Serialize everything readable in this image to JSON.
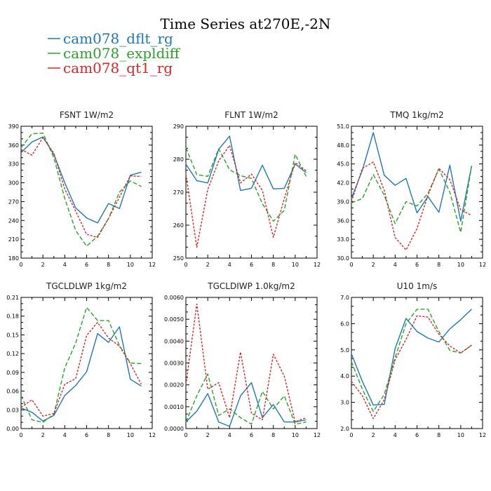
{
  "title": "Time Series at270E,-2N",
  "legend": [
    {
      "label": "cam078_dflt_rg",
      "color": "#1f77b4",
      "dash": "none"
    },
    {
      "label": "cam078_expldiff",
      "color": "#2ca02c",
      "dash": "6,3"
    },
    {
      "label": "cam078_qt1_rg",
      "color": "#d62728",
      "dash": "3,2"
    }
  ],
  "chart_data": [
    {
      "type": "line",
      "title": "FSNT   1W/m2",
      "xlim": [
        0,
        12
      ],
      "ylim": [
        180,
        390
      ],
      "xticks": [
        0,
        2,
        4,
        6,
        8,
        10,
        12
      ],
      "yticks": [
        180,
        210,
        240,
        270,
        300,
        330,
        360,
        390
      ],
      "yticklabels": [
        "180",
        "210",
        "240",
        "270",
        "300",
        "330",
        "360",
        "390"
      ],
      "x": [
        0,
        1,
        2,
        3,
        4,
        5,
        6,
        7,
        8,
        9,
        10,
        11
      ],
      "series": [
        {
          "name": "cam078_dflt_rg",
          "values": [
            348,
            365,
            373,
            345,
            300,
            260,
            244,
            236,
            267,
            259,
            312,
            317
          ]
        },
        {
          "name": "cam078_expldiff",
          "values": [
            356,
            378,
            379,
            340,
            275,
            224,
            199,
            215,
            243,
            285,
            303,
            294
          ]
        },
        {
          "name": "cam078_qt1_rg",
          "values": [
            353,
            344,
            372,
            347,
            290,
            255,
            218,
            213,
            243,
            277,
            311,
            310
          ]
        }
      ]
    },
    {
      "type": "line",
      "title": "FLNT   1W/m2",
      "xlim": [
        0,
        12
      ],
      "ylim": [
        250,
        290
      ],
      "xticks": [
        0,
        2,
        4,
        6,
        8,
        10,
        12
      ],
      "yticks": [
        250,
        260,
        270,
        280,
        290
      ],
      "yticklabels": [
        "250",
        "260",
        "270",
        "280",
        "290"
      ],
      "x": [
        0,
        1,
        2,
        3,
        4,
        5,
        6,
        7,
        8,
        9,
        10,
        11
      ],
      "series": [
        {
          "name": "cam078_dflt_rg",
          "values": [
            278.5,
            273.5,
            272.8,
            283,
            287,
            270.5,
            271.2,
            278.2,
            271,
            271.2,
            278.5,
            276
          ]
        },
        {
          "name": "cam078_expldiff",
          "values": [
            283.5,
            275.3,
            274.8,
            283.2,
            276.8,
            275,
            274.2,
            266.5,
            261.2,
            264.5,
            281.5,
            274.8
          ]
        },
        {
          "name": "cam078_qt1_rg",
          "values": [
            275.5,
            253.3,
            270.8,
            279.5,
            284.2,
            272.8,
            275.5,
            270.5,
            256.3,
            268,
            279,
            276.5
          ]
        }
      ]
    },
    {
      "type": "line",
      "title": "TMQ   1kg/m2",
      "xlim": [
        0,
        12
      ],
      "ylim": [
        30,
        51
      ],
      "xticks": [
        0,
        2,
        4,
        6,
        8,
        10,
        12
      ],
      "yticks": [
        30,
        33,
        36,
        39,
        42,
        45,
        48,
        51
      ],
      "yticklabels": [
        "30.0",
        "33.0",
        "36.0",
        "39.0",
        "42.0",
        "45.0",
        "48.0",
        "51.0"
      ],
      "x": [
        0,
        1,
        2,
        3,
        4,
        5,
        6,
        7,
        8,
        9,
        10,
        11
      ],
      "series": [
        {
          "name": "cam078_dflt_rg",
          "values": [
            39.5,
            44,
            50,
            43.2,
            41.6,
            42.7,
            37.2,
            39.8,
            37.3,
            44.8,
            35.9,
            44.7
          ]
        },
        {
          "name": "cam078_expldiff",
          "values": [
            38.8,
            39.5,
            43.3,
            40,
            35.5,
            39,
            38.3,
            40.3,
            44.2,
            40.5,
            34.1,
            44.7
          ]
        },
        {
          "name": "cam078_qt1_rg",
          "values": [
            39,
            44.3,
            45.3,
            40.8,
            33.3,
            31.3,
            34.7,
            40,
            44.3,
            42.5,
            37.7,
            36.8
          ]
        }
      ]
    },
    {
      "type": "line",
      "title": "TGCLDLWP   1kg/m2",
      "xlim": [
        0,
        12
      ],
      "ylim": [
        0,
        0.21
      ],
      "xticks": [
        0,
        2,
        4,
        6,
        8,
        10,
        12
      ],
      "yticks": [
        0,
        0.03,
        0.06,
        0.09,
        0.12,
        0.15,
        0.18,
        0.21
      ],
      "yticklabels": [
        "0.00",
        "0.03",
        "0.06",
        "0.09",
        "0.12",
        "0.15",
        "0.18",
        "0.21"
      ],
      "x": [
        0,
        1,
        2,
        3,
        4,
        5,
        6,
        7,
        8,
        9,
        10,
        11
      ],
      "series": [
        {
          "name": "cam078_dflt_rg",
          "values": [
            0.033,
            0.026,
            0.012,
            0.021,
            0.053,
            0.069,
            0.091,
            0.152,
            0.138,
            0.163,
            0.079,
            0.068
          ]
        },
        {
          "name": "cam078_expldiff",
          "values": [
            0.053,
            0.014,
            0.01,
            0.023,
            0.097,
            0.137,
            0.194,
            0.173,
            0.173,
            0.133,
            0.105,
            0.104
          ]
        },
        {
          "name": "cam078_qt1_rg",
          "values": [
            0.034,
            0.046,
            0.02,
            0.024,
            0.071,
            0.08,
            0.149,
            0.17,
            0.145,
            0.132,
            0.104,
            0.071
          ]
        }
      ]
    },
    {
      "type": "line",
      "title": "TGCLDIWP   1.0kg/m2",
      "xlim": [
        0,
        12
      ],
      "ylim": [
        0,
        0.006
      ],
      "xticks": [
        0,
        2,
        4,
        6,
        8,
        10,
        12
      ],
      "yticks": [
        0,
        0.001,
        0.002,
        0.003,
        0.004,
        0.005,
        0.006
      ],
      "yticklabels": [
        "0.0000",
        "0.0010",
        "0.0020",
        "0.0030",
        "0.0040",
        "0.0050",
        "0.0060"
      ],
      "x": [
        0,
        1,
        2,
        3,
        4,
        5,
        6,
        7,
        8,
        9,
        10,
        11
      ],
      "series": [
        {
          "name": "cam078_dflt_rg",
          "values": [
            0.0003,
            0.0008,
            0.0016,
            0.0003,
            0.0001,
            0.0015,
            0.0021,
            0.0005,
            0.0011,
            0.0003,
            0.0003,
            0.0004
          ]
        },
        {
          "name": "cam078_expldiff",
          "values": [
            0.0003,
            0.0015,
            0.0025,
            0.0006,
            0.0009,
            0.0005,
            0.0002,
            0.0017,
            0.0009,
            0.0015,
            0.0002,
            0.0003
          ]
        },
        {
          "name": "cam078_qt1_rg",
          "values": [
            0.002,
            0.0057,
            0.0018,
            0.0021,
            0.0005,
            0.0035,
            0.0007,
            0.0004,
            0.0034,
            0.0024,
            0.0003,
            0.0005
          ]
        }
      ]
    },
    {
      "type": "line",
      "title": "U10   1m/s",
      "xlim": [
        0,
        12
      ],
      "ylim": [
        2,
        7
      ],
      "xticks": [
        0,
        2,
        4,
        6,
        8,
        10,
        12
      ],
      "yticks": [
        2,
        3,
        4,
        5,
        6,
        7
      ],
      "yticklabels": [
        "2.0",
        "3.0",
        "4.0",
        "5.0",
        "6.0",
        "7.0"
      ],
      "x": [
        0,
        1,
        2,
        3,
        4,
        5,
        6,
        7,
        8,
        9,
        10,
        11
      ],
      "series": [
        {
          "name": "cam078_dflt_rg",
          "values": [
            4.85,
            3.8,
            2.9,
            2.92,
            5.05,
            6.2,
            5.7,
            5.45,
            5.3,
            5.8,
            6.15,
            6.55
          ]
        },
        {
          "name": "cam078_expldiff",
          "values": [
            4.55,
            3.5,
            2.65,
            3.3,
            4.7,
            6.0,
            6.55,
            6.55,
            5.7,
            4.98,
            4.88,
            5.18
          ]
        },
        {
          "name": "cam078_qt1_rg",
          "values": [
            3.8,
            3.25,
            2.38,
            3.1,
            4.62,
            5.4,
            6.3,
            6.25,
            5.6,
            5.15,
            4.88,
            5.18
          ]
        }
      ]
    }
  ]
}
